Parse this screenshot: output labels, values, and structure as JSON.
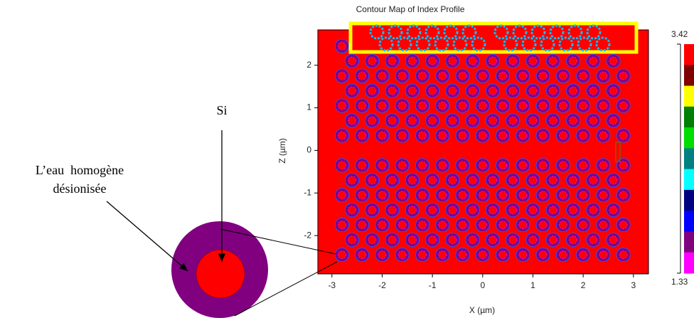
{
  "chart_data": {
    "type": "contour",
    "title": "Contour Map of Index Profile",
    "x_label": "X (µm)",
    "y_label": "Z (µm)",
    "xlim": [
      -3.28,
      3.3
    ],
    "ylim": [
      -2.9,
      2.83
    ],
    "xticks": [
      -3,
      -2,
      -1,
      0,
      1,
      2,
      3
    ],
    "yticks": [
      -2,
      -1,
      0,
      1,
      2
    ],
    "background_color": "#ff0000",
    "hole_color": "#800080",
    "rows": [
      {
        "z": 2.45,
        "x": [
          -2.8,
          -2.4,
          -2.0,
          -1.6,
          -1.2,
          -0.8,
          -0.4,
          0,
          0.4,
          0.8,
          1.2,
          1.6,
          2.0,
          2.4,
          2.8
        ]
      },
      {
        "z": 2.1,
        "x": [
          -2.6,
          -2.2,
          -1.8,
          -1.4,
          -1.0,
          -0.6,
          -0.2,
          0.2,
          0.6,
          1.0,
          1.4,
          1.8,
          2.2,
          2.6
        ]
      },
      {
        "z": 1.75,
        "x": [
          -2.8,
          -2.4,
          -2.0,
          -1.6,
          -1.2,
          -0.8,
          -0.4,
          0,
          0.4,
          0.8,
          1.2,
          1.6,
          2.0,
          2.4,
          2.8
        ]
      },
      {
        "z": 1.4,
        "x": [
          -2.6,
          -2.2,
          -1.8,
          -1.4,
          -1.0,
          -0.6,
          -0.2,
          0.2,
          0.6,
          1.0,
          1.4,
          1.8,
          2.2,
          2.6
        ]
      },
      {
        "z": 1.05,
        "x": [
          -2.8,
          -2.4,
          -2.0,
          -1.6,
          -1.2,
          -0.8,
          -0.4,
          0,
          0.4,
          0.8,
          1.2,
          1.6,
          2.0,
          2.4,
          2.8
        ]
      },
      {
        "z": 0.7,
        "x": [
          -2.6,
          -2.2,
          -1.8,
          -1.4,
          -1.0,
          -0.6,
          -0.2,
          0.2,
          0.6,
          1.0,
          1.4,
          1.8,
          2.2,
          2.6
        ]
      },
      {
        "z": 0.35,
        "x": [
          -2.8,
          -2.4,
          -2.0,
          -1.6,
          -1.2,
          -0.8,
          -0.4,
          0,
          0.4,
          0.8,
          1.2,
          1.6,
          2.0,
          2.4,
          2.8
        ]
      },
      {
        "z": -0.35,
        "x": [
          -2.8,
          -2.4,
          -2.0,
          -1.6,
          -1.2,
          -0.8,
          -0.4,
          0,
          0.4,
          0.8,
          1.2,
          1.6,
          2.0,
          2.4,
          2.8
        ]
      },
      {
        "z": -0.7,
        "x": [
          -2.6,
          -2.2,
          -1.8,
          -1.4,
          -1.0,
          -0.6,
          -0.2,
          0.2,
          0.6,
          1.0,
          1.4,
          1.8,
          2.2,
          2.6
        ]
      },
      {
        "z": -1.05,
        "x": [
          -2.8,
          -2.4,
          -2.0,
          -1.6,
          -1.2,
          -0.8,
          -0.4,
          0,
          0.4,
          0.8,
          1.2,
          1.6,
          2.0,
          2.4,
          2.8
        ]
      },
      {
        "z": -1.4,
        "x": [
          -2.6,
          -2.2,
          -1.8,
          -1.4,
          -1.0,
          -0.6,
          -0.2,
          0.2,
          0.6,
          1.0,
          1.4,
          1.8,
          2.2,
          2.6
        ]
      },
      {
        "z": -1.75,
        "x": [
          -2.8,
          -2.4,
          -2.0,
          -1.6,
          -1.2,
          -0.8,
          -0.4,
          0,
          0.4,
          0.8,
          1.2,
          1.6,
          2.0,
          2.4,
          2.8
        ]
      },
      {
        "z": -2.1,
        "x": [
          -2.6,
          -2.2,
          -1.8,
          -1.4,
          -1.0,
          -0.6,
          -0.2,
          0.2,
          0.6,
          1.0,
          1.4,
          1.8,
          2.2,
          2.6
        ]
      },
      {
        "z": -2.45,
        "x": [
          -2.8,
          -2.4,
          -2.0,
          -1.6,
          -1.2,
          -0.8,
          -0.4,
          0,
          0.4,
          0.8,
          1.2,
          1.6,
          2.0,
          2.4,
          2.8
        ]
      }
    ],
    "colorbar": {
      "max": 3.42,
      "min": 1.33,
      "colors": [
        "#ff0000",
        "#800000",
        "#ffff00",
        "#008000",
        "#00dd00",
        "#008080",
        "#00ffff",
        "#000080",
        "#0000ff",
        "#800080",
        "#ff00ff"
      ]
    },
    "annotations": {
      "si": "Si",
      "water_line1": "L’eau  homogène",
      "water_line2": "désionisée"
    }
  }
}
